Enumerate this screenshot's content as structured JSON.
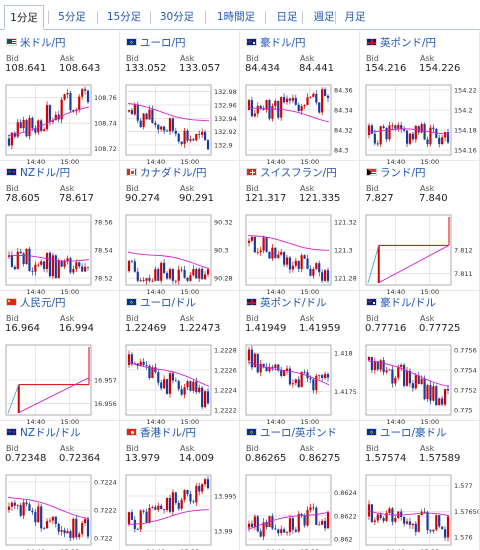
{
  "tabs": [
    {
      "label": "1分足",
      "active": true
    },
    {
      "label": "5分足",
      "active": false
    },
    {
      "label": "15分足",
      "active": false
    },
    {
      "label": "30分足",
      "active": false
    },
    {
      "label": "1時間足",
      "active": false
    },
    {
      "label": "日足",
      "active": false
    },
    {
      "label": "週足",
      "active": false
    },
    {
      "label": "月足",
      "active": false
    }
  ],
  "bid_label": "Bid",
  "ask_label": "Ask",
  "colors": {
    "up": "#d40000",
    "down": "#1b3a9e",
    "ma": "#d21fd2",
    "grid": "#d5d5d5",
    "link": "#1f56b5"
  },
  "pairs": [
    {
      "name": "米ドル/円",
      "flag": "us-flag-icon",
      "bid": "108.641",
      "ask": "108.643",
      "chart_data": {
        "type": "candlestick",
        "x_ticks": [
          "14:40",
          "15:00"
        ],
        "y_ticks": [
          "108.76",
          "108.74",
          "108.72"
        ],
        "ylim": [
          108.715,
          108.77
        ],
        "close_start": 108.728,
        "close_end": 108.765,
        "ma_start": 108.73,
        "ma_end": 108.752,
        "seed": 3
      }
    },
    {
      "name": "ユーロ/円",
      "flag": "eu-flag-icon",
      "bid": "133.052",
      "ask": "133.057",
      "chart_data": {
        "type": "candlestick",
        "x_ticks": [
          "14:40",
          "15:00"
        ],
        "y_ticks": [
          "132.98",
          "132.96",
          "132.94",
          "132.92",
          "132.9"
        ],
        "ylim": [
          132.885,
          132.99
        ],
        "close_start": 132.95,
        "close_end": 132.9,
        "ma_start": 132.96,
        "ma_end": 132.935,
        "seed": 7
      }
    },
    {
      "name": "豪ドル/円",
      "flag": "au-flag-icon",
      "bid": "84.434",
      "ask": "84.441",
      "chart_data": {
        "type": "candlestick",
        "x_ticks": [
          "14:40",
          "15:00"
        ],
        "y_ticks": [
          "84.36",
          "84.34",
          "84.32",
          "84.3"
        ],
        "ylim": [
          84.295,
          84.365
        ],
        "close_start": 84.34,
        "close_end": 84.35,
        "ma_start": 84.345,
        "ma_end": 84.33,
        "seed": 11
      }
    },
    {
      "name": "英ポンド/円",
      "flag": "uk-flag-icon",
      "bid": "154.216",
      "ask": "154.226",
      "chart_data": {
        "type": "candlestick",
        "x_ticks": [
          "14:40",
          "15:00"
        ],
        "y_ticks": [
          "154.22",
          "154.2",
          "154.18",
          "154.16"
        ],
        "ylim": [
          154.155,
          154.225
        ],
        "close_start": 154.175,
        "close_end": 154.175,
        "ma_start": 154.18,
        "ma_end": 154.178,
        "seed": 5
      }
    },
    {
      "name": "NZドル/円",
      "flag": "nz-flag-icon",
      "bid": "78.605",
      "ask": "78.617",
      "chart_data": {
        "type": "candlestick",
        "x_ticks": [
          "14:40",
          "15:00"
        ],
        "y_ticks": [
          "78.56",
          "78.54",
          "78.52"
        ],
        "ylim": [
          78.515,
          78.565
        ],
        "close_start": 78.535,
        "close_end": 78.524,
        "ma_start": 78.535,
        "ma_end": 78.533,
        "seed": 13
      }
    },
    {
      "name": "カナダドル/円",
      "flag": "ca-flag-icon",
      "bid": "90.274",
      "ask": "90.291",
      "chart_data": {
        "type": "candlestick",
        "x_ticks": [
          "14:40",
          "15:00"
        ],
        "y_ticks": [
          "90.32",
          "90.3",
          "90.28"
        ],
        "ylim": [
          90.275,
          90.325
        ],
        "close_start": 90.285,
        "close_end": 90.278,
        "ma_start": 90.3,
        "ma_end": 90.288,
        "seed": 17
      }
    },
    {
      "name": "スイスフラン/円",
      "flag": "ch-flag-icon",
      "bid": "121.317",
      "ask": "121.335",
      "chart_data": {
        "type": "candlestick",
        "x_ticks": [
          "14:40",
          "15:00"
        ],
        "y_ticks": [
          "121.32",
          "121.3",
          "121.28"
        ],
        "ylim": [
          121.275,
          121.325
        ],
        "close_start": 121.305,
        "close_end": 121.28,
        "ma_start": 121.31,
        "ma_end": 121.3,
        "seed": 19
      }
    },
    {
      "name": "ランド/円",
      "flag": "za-flag-icon",
      "bid": "7.827",
      "ask": "7.840",
      "chart_data": {
        "type": "line",
        "x_ticks": [
          "14:40",
          "15:00"
        ],
        "y_ticks": [
          "7.812",
          "7.811"
        ],
        "ylim": [
          7.8105,
          7.8135
        ],
        "price": 7.8122,
        "ma_start": 7.8106,
        "ma_end": 7.8122
      }
    },
    {
      "name": "人民元/円",
      "flag": "cn-flag-icon",
      "bid": "16.964",
      "ask": "16.994",
      "chart_data": {
        "type": "line",
        "x_ticks": [
          "14:40",
          "15:00"
        ],
        "y_ticks": [
          "16.957",
          "16.956"
        ],
        "ylim": [
          16.9555,
          16.9585
        ],
        "price": 16.9568,
        "ma_start": 16.9556,
        "ma_end": 16.9571
      }
    },
    {
      "name": "ユーロ/ドル",
      "flag": "eu-flag-icon",
      "bid": "1.22469",
      "ask": "1.22473",
      "chart_data": {
        "type": "candlestick",
        "x_ticks": [
          "14:40",
          "15:00"
        ],
        "y_ticks": [
          "1.2228",
          "1.2226",
          "1.2224",
          "1.2222"
        ],
        "ylim": [
          1.22215,
          1.22285
        ],
        "close_start": 1.22265,
        "close_end": 1.2223,
        "ma_start": 1.2227,
        "ma_end": 1.22245,
        "seed": 23
      }
    },
    {
      "name": "英ポンド/ドル",
      "flag": "uk-flag-icon",
      "bid": "1.41949",
      "ask": "1.41959",
      "chart_data": {
        "type": "candlestick",
        "x_ticks": [
          "14:40",
          "15:00"
        ],
        "y_ticks": [
          "1.418",
          "1.4175"
        ],
        "ylim": [
          1.4172,
          1.4181
        ],
        "close_start": 1.4179,
        "close_end": 1.4176,
        "ma_start": 1.4179,
        "ma_end": 1.4176,
        "seed": 29
      }
    },
    {
      "name": "豪ドル/ドル",
      "flag": "au-flag-icon",
      "bid": "0.77716",
      "ask": "0.77725",
      "chart_data": {
        "type": "candlestick",
        "x_ticks": [
          "14:40",
          "15:00"
        ],
        "y_ticks": [
          "0.7756",
          "0.7754",
          "0.7752",
          "0.775"
        ],
        "ylim": [
          0.77495,
          0.77565
        ],
        "close_start": 0.7755,
        "close_end": 0.7751,
        "ma_start": 0.7755,
        "ma_end": 0.77525,
        "seed": 31
      }
    },
    {
      "name": "NZドル/ドル",
      "flag": "nz-flag-icon",
      "bid": "0.72348",
      "ask": "0.72364",
      "chart_data": {
        "type": "candlestick",
        "x_ticks": [
          "14:40",
          "15:00"
        ],
        "y_ticks": [
          "0.7224",
          "0.7222",
          "0.722"
        ],
        "ylim": [
          0.72195,
          0.72245
        ],
        "close_start": 0.7222,
        "close_end": 0.72205,
        "ma_start": 0.7223,
        "ma_end": 0.72215,
        "seed": 37
      }
    },
    {
      "name": "香港ドル/円",
      "flag": "hk-flag-icon",
      "bid": "13.979",
      "ask": "14.009",
      "chart_data": {
        "type": "candlestick",
        "x_ticks": [
          "14:40",
          "15:00"
        ],
        "y_ticks": [
          "13.995",
          "13.99"
        ],
        "ylim": [
          13.988,
          13.998
        ],
        "close_start": 13.991,
        "close_end": 13.996,
        "ma_start": 13.991,
        "ma_end": 13.993,
        "seed": 41
      }
    },
    {
      "name": "ユーロ/英ポンド",
      "flag": "eu-flag-icon",
      "bid": "0.86265",
      "ask": "0.86275",
      "chart_data": {
        "type": "candlestick",
        "x_ticks": [
          "14:40",
          "15:00"
        ],
        "y_ticks": [
          "0.8624",
          "0.8622",
          "0.862"
        ],
        "ylim": [
          0.86195,
          0.86255
        ],
        "close_start": 0.8621,
        "close_end": 0.8622,
        "ma_start": 0.8621,
        "ma_end": 0.86225,
        "seed": 43
      }
    },
    {
      "name": "ユーロ/豪ドル",
      "flag": "eu-flag-icon",
      "bid": "1.57574",
      "ask": "1.57589",
      "chart_data": {
        "type": "candlestick",
        "x_ticks": [
          "14:40",
          "15:00"
        ],
        "y_ticks": [
          "1.577",
          "1.57650",
          "1.576"
        ],
        "ylim": [
          1.57585,
          1.5772
        ],
        "close_start": 1.5764,
        "close_end": 1.5762,
        "ma_start": 1.5765,
        "ma_end": 1.5764,
        "seed": 47
      }
    }
  ]
}
